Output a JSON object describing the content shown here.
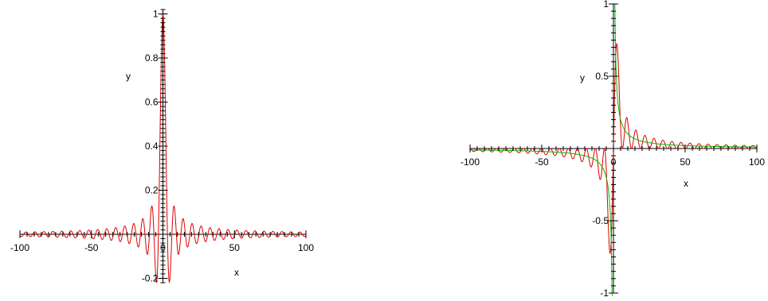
{
  "chart_data": [
    {
      "type": "line",
      "xlim": [
        -100,
        100
      ],
      "ylim": [
        -0.22,
        1.02
      ],
      "xlabel": "x",
      "ylabel": "y",
      "x_ticks": [
        -100,
        -50,
        0,
        50,
        100
      ],
      "x_tick_labels": [
        "-100",
        "-50",
        "0",
        "50",
        "100"
      ],
      "y_ticks": [
        -0.2,
        0.2,
        0.4,
        0.6,
        0.8,
        1
      ],
      "y_tick_labels": [
        "-0.2",
        "0.2",
        "0.4",
        "0.6",
        "0.8",
        "1"
      ],
      "grid": false,
      "series": [
        {
          "color": "#e00000",
          "function": "sin(x)/x",
          "x_range": [
            -100,
            100
          ],
          "samples": 1200
        }
      ]
    },
    {
      "type": "line",
      "xlim": [
        -100,
        100
      ],
      "ylim": [
        -1,
        1
      ],
      "xlabel": "x",
      "ylabel": "y",
      "x_ticks": [
        -100,
        -50,
        0,
        50,
        100
      ],
      "x_tick_labels": [
        "-100",
        "-50",
        "0",
        "50",
        "100"
      ],
      "y_ticks": [
        -1,
        -0.5,
        0.5,
        1
      ],
      "y_tick_labels": [
        "-1",
        "-0.5",
        "0.5",
        "1"
      ],
      "grid": false,
      "series": [
        {
          "color": "#e00000",
          "function": "(1-cos(x))/x",
          "x_range": [
            -100,
            100
          ],
          "samples": 1200
        },
        {
          "color": "#00bb00",
          "function": "1/x",
          "x_range": [
            -100,
            100
          ],
          "samples": 1200
        }
      ]
    }
  ]
}
